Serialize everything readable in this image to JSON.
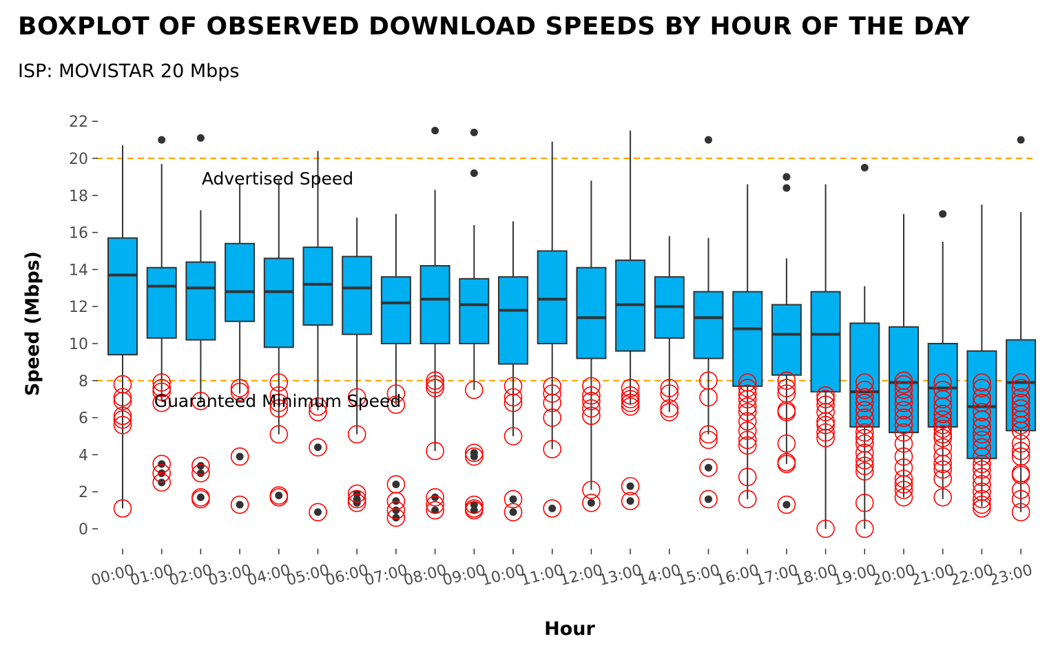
{
  "chart_data": {
    "type": "boxplot",
    "title": "BOXPLOT OF OBSERVED DOWNLOAD SPEEDS BY HOUR OF THE DAY",
    "subtitle": "ISP: MOVISTAR 20 Mbps",
    "xlabel": "Hour",
    "ylabel": "Speed (Mbps)",
    "ylim": [
      -1,
      22.5
    ],
    "yticks": [
      0,
      2,
      4,
      6,
      8,
      10,
      12,
      14,
      16,
      18,
      20,
      22
    ],
    "grid": false,
    "categories": [
      "00:00",
      "01:00",
      "02:00",
      "03:00",
      "04:00",
      "05:00",
      "06:00",
      "07:00",
      "08:00",
      "09:00",
      "10:00",
      "11:00",
      "12:00",
      "13:00",
      "14:00",
      "15:00",
      "16:00",
      "17:00",
      "18:00",
      "19:00",
      "20:00",
      "21:00",
      "22:00",
      "23:00"
    ],
    "boxes": [
      {
        "hour": "00:00",
        "whisker_low": 1.1,
        "q1": 9.4,
        "median": 13.7,
        "q3": 15.7,
        "whisker_high": 20.7,
        "outliers": []
      },
      {
        "hour": "01:00",
        "whisker_low": 6.9,
        "q1": 10.3,
        "median": 13.1,
        "q3": 14.1,
        "whisker_high": 19.7,
        "outliers": [
          21.0,
          3.5,
          3.0,
          2.5
        ]
      },
      {
        "hour": "02:00",
        "whisker_low": 6.8,
        "q1": 10.2,
        "median": 13.0,
        "q3": 14.4,
        "whisker_high": 17.2,
        "outliers": [
          21.1,
          3.4,
          3.0,
          1.7
        ]
      },
      {
        "hour": "03:00",
        "whisker_low": 7.3,
        "q1": 11.2,
        "median": 12.8,
        "q3": 15.4,
        "whisker_high": 18.6,
        "outliers": [
          3.9,
          1.3
        ]
      },
      {
        "hour": "04:00",
        "whisker_low": 5.1,
        "q1": 9.8,
        "median": 12.8,
        "q3": 14.6,
        "whisker_high": 18.8,
        "outliers": [
          1.8
        ]
      },
      {
        "hour": "05:00",
        "whisker_low": 6.4,
        "q1": 11.0,
        "median": 13.2,
        "q3": 15.2,
        "whisker_high": 20.4,
        "outliers": [
          4.4,
          0.9
        ]
      },
      {
        "hour": "06:00",
        "whisker_low": 5.1,
        "q1": 10.5,
        "median": 13.0,
        "q3": 14.7,
        "whisker_high": 16.8,
        "outliers": [
          1.9,
          1.6,
          1.4
        ]
      },
      {
        "hour": "07:00",
        "whisker_low": 6.7,
        "q1": 10.0,
        "median": 12.2,
        "q3": 13.6,
        "whisker_high": 17.0,
        "outliers": [
          2.4,
          1.5,
          1.0,
          0.6
        ]
      },
      {
        "hour": "08:00",
        "whisker_low": 4.2,
        "q1": 10.0,
        "median": 12.4,
        "q3": 14.2,
        "whisker_high": 18.3,
        "outliers": [
          21.5,
          1.7,
          1.0
        ]
      },
      {
        "hour": "09:00",
        "whisker_low": 7.5,
        "q1": 10.0,
        "median": 12.1,
        "q3": 13.5,
        "whisker_high": 16.4,
        "outliers": [
          21.4,
          19.2,
          4.1,
          3.9,
          1.3,
          1.0
        ]
      },
      {
        "hour": "10:00",
        "whisker_low": 5.0,
        "q1": 8.9,
        "median": 11.8,
        "q3": 13.6,
        "whisker_high": 16.6,
        "outliers": [
          1.6,
          0.9
        ]
      },
      {
        "hour": "11:00",
        "whisker_low": 4.3,
        "q1": 10.0,
        "median": 12.4,
        "q3": 15.0,
        "whisker_high": 20.9,
        "outliers": [
          1.1
        ]
      },
      {
        "hour": "12:00",
        "whisker_low": 2.1,
        "q1": 9.2,
        "median": 11.4,
        "q3": 14.1,
        "whisker_high": 18.8,
        "outliers": [
          1.4
        ]
      },
      {
        "hour": "13:00",
        "whisker_low": 6.7,
        "q1": 9.6,
        "median": 12.1,
        "q3": 14.5,
        "whisker_high": 21.5,
        "outliers": [
          2.3,
          1.5
        ]
      },
      {
        "hour": "14:00",
        "whisker_low": 6.3,
        "q1": 10.3,
        "median": 12.0,
        "q3": 13.6,
        "whisker_high": 15.8,
        "outliers": []
      },
      {
        "hour": "15:00",
        "whisker_low": 5.1,
        "q1": 9.2,
        "median": 11.4,
        "q3": 12.8,
        "whisker_high": 15.7,
        "outliers": [
          21.0,
          3.3,
          1.6
        ]
      },
      {
        "hour": "16:00",
        "whisker_low": 1.6,
        "q1": 7.7,
        "median": 10.8,
        "q3": 12.8,
        "whisker_high": 18.6,
        "outliers": []
      },
      {
        "hour": "17:00",
        "whisker_low": 3.5,
        "q1": 8.3,
        "median": 10.5,
        "q3": 12.1,
        "whisker_high": 14.6,
        "outliers": [
          19.0,
          18.4,
          1.3
        ]
      },
      {
        "hour": "18:00",
        "whisker_low": 0.0,
        "q1": 7.4,
        "median": 10.5,
        "q3": 12.8,
        "whisker_high": 18.6,
        "outliers": []
      },
      {
        "hour": "19:00",
        "whisker_low": 0.0,
        "q1": 5.5,
        "median": 7.4,
        "q3": 11.1,
        "whisker_high": 13.1,
        "outliers": [
          19.5
        ]
      },
      {
        "hour": "20:00",
        "whisker_low": 1.7,
        "q1": 5.2,
        "median": 7.9,
        "q3": 10.9,
        "whisker_high": 17.0,
        "outliers": []
      },
      {
        "hour": "21:00",
        "whisker_low": 1.6,
        "q1": 5.5,
        "median": 7.6,
        "q3": 10.0,
        "whisker_high": 15.5,
        "outliers": [
          17.0
        ]
      },
      {
        "hour": "22:00",
        "whisker_low": 1.2,
        "q1": 3.8,
        "median": 6.6,
        "q3": 9.6,
        "whisker_high": 17.5,
        "outliers": []
      },
      {
        "hour": "23:00",
        "whisker_low": 0.9,
        "q1": 5.3,
        "median": 7.9,
        "q3": 10.2,
        "whisker_high": 17.1,
        "outliers": [
          21.0
        ]
      }
    ],
    "below_minimum_points": [
      [
        7.8,
        7.1,
        6.9,
        6.1,
        5.9,
        5.6,
        1.1
      ],
      [
        7.9,
        7.6,
        7.4,
        6.8,
        3.5,
        3.0,
        2.5
      ],
      [
        6.9,
        3.4,
        3.0,
        1.7,
        1.6
      ],
      [
        7.6,
        7.4,
        3.9,
        1.3
      ],
      [
        7.9,
        7.2,
        6.8,
        6.5,
        5.1,
        1.8,
        1.7
      ],
      [
        6.6,
        6.3,
        4.4,
        0.9
      ],
      [
        7.1,
        5.1,
        1.9,
        1.6,
        1.4
      ],
      [
        7.3,
        6.7,
        2.4,
        1.5,
        1.0,
        0.6
      ],
      [
        8.0,
        7.8,
        7.6,
        4.2,
        1.7,
        1.3,
        1.0
      ],
      [
        7.5,
        4.1,
        3.9,
        1.3,
        1.1,
        1.0
      ],
      [
        7.7,
        7.1,
        6.8,
        5.0,
        1.6,
        0.9
      ],
      [
        7.7,
        7.3,
        6.8,
        6.0,
        4.3,
        1.1
      ],
      [
        7.7,
        7.2,
        6.9,
        6.5,
        6.1,
        2.1,
        1.4
      ],
      [
        7.6,
        7.2,
        7.0,
        6.8,
        6.6,
        2.3,
        1.5
      ],
      [
        7.6,
        7.3,
        6.5,
        6.3
      ],
      [
        8.0,
        7.1,
        5.1,
        4.8,
        3.3,
        1.6
      ],
      [
        7.9,
        7.6,
        7.3,
        7.0,
        6.6,
        6.3,
        5.8,
        5.3,
        4.8,
        4.5,
        2.8,
        1.6
      ],
      [
        8.0,
        7.6,
        7.3,
        6.4,
        6.3,
        4.6,
        3.6,
        3.5,
        1.3
      ],
      [
        7.2,
        7.0,
        6.7,
        6.3,
        5.8,
        5.6,
        5.2,
        4.9,
        0.0
      ],
      [
        7.9,
        7.5,
        7.1,
        6.8,
        6.4,
        6.0,
        5.6,
        5.2,
        4.9,
        4.6,
        4.1,
        3.7,
        3.4,
        3.1,
        1.4,
        0.0
      ],
      [
        8.0,
        7.8,
        7.5,
        7.1,
        6.8,
        6.4,
        6.0,
        5.6,
        5.2,
        4.6,
        3.9,
        3.3,
        2.7,
        2.4,
        2.1,
        1.7
      ],
      [
        7.9,
        7.5,
        7.0,
        6.6,
        6.2,
        5.9,
        5.6,
        5.4,
        5.1,
        4.9,
        4.4,
        3.9,
        3.5,
        3.2,
        2.7,
        1.7
      ],
      [
        7.9,
        7.6,
        7.1,
        6.8,
        6.3,
        5.9,
        5.5,
        5.1,
        4.8,
        4.4,
        3.9,
        3.5,
        3.2,
        2.8,
        2.4,
        2.0,
        1.6,
        1.3,
        1.1
      ],
      [
        7.9,
        7.6,
        7.1,
        6.8,
        6.5,
        6.2,
        5.9,
        5.6,
        5.3,
        4.6,
        4.2,
        3.9,
        3.0,
        2.9,
        2.1,
        1.6,
        0.9
      ]
    ],
    "reference_lines": [
      {
        "label": "Advertised Speed",
        "value": 20,
        "color": "#FFA500"
      },
      {
        "label": "Guaranteed Minimum Speed",
        "value": 8,
        "color": "#FFA500"
      }
    ],
    "colors": {
      "box_fill": "#00B0F0",
      "box_stroke": "#333333",
      "outlier": "#333333",
      "below_min_circle": "#FF0000",
      "reference": "#FFA500"
    }
  }
}
